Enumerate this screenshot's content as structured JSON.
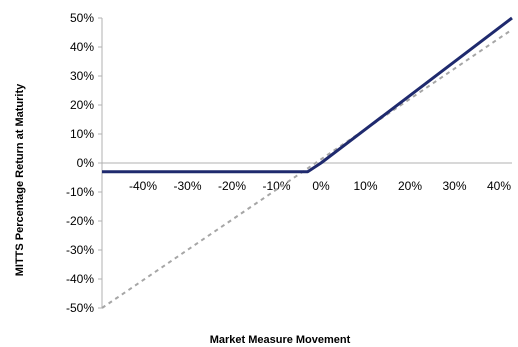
{
  "chart_data": {
    "type": "line",
    "xlabel": "Market Measure Movement",
    "ylabel": "MITTS Percentage Return at Maturity",
    "x_ticks": [
      "-40%",
      "-30%",
      "-20%",
      "-10%",
      "0%",
      "10%",
      "20%",
      "30%",
      "40%"
    ],
    "x_tick_values": [
      -40,
      -30,
      -20,
      -10,
      0,
      10,
      20,
      30,
      40
    ],
    "y_ticks": [
      "50%",
      "40%",
      "30%",
      "20%",
      "10%",
      "0%",
      "-10%",
      "-20%",
      "-30%",
      "-40%",
      "-50%"
    ],
    "y_tick_values": [
      50,
      40,
      30,
      20,
      10,
      0,
      -10,
      -20,
      -30,
      -40,
      -50
    ],
    "xlim": [
      -50,
      45
    ],
    "ylim": [
      -50,
      50
    ],
    "grid": false,
    "series": [
      {
        "style": "solid",
        "color": "#1f2a6e",
        "points": [
          [
            -50,
            -3
          ],
          [
            -3,
            -3
          ],
          [
            0,
            0
          ],
          [
            43,
            50
          ]
        ]
      },
      {
        "style": "dashed",
        "color": "#a6a6a6",
        "points": [
          [
            -50,
            -50
          ],
          [
            46,
            46
          ]
        ]
      }
    ]
  }
}
